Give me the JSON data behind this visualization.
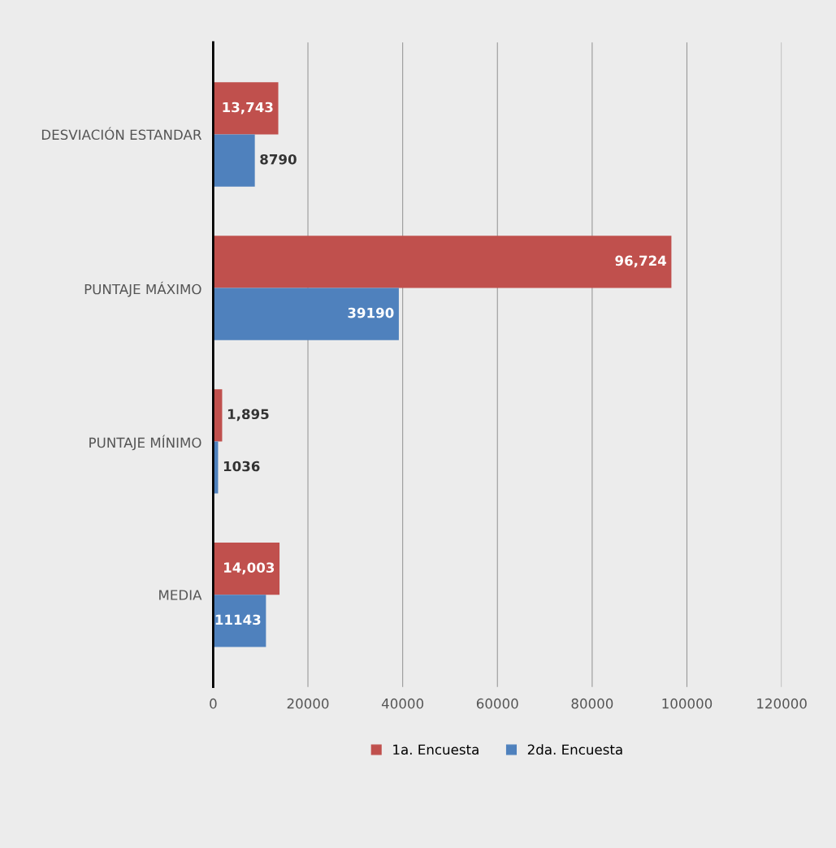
{
  "chart_data": {
    "type": "bar",
    "orientation": "horizontal",
    "categories": [
      "DESVIACIÓN ESTANDAR",
      "PUNTAJE MÁXIMO",
      "PUNTAJE MÍNIMO",
      "MEDIA"
    ],
    "series": [
      {
        "name": "1a. Encuesta",
        "color": "#c0504d",
        "values": [
          13743,
          96724,
          1895,
          14003
        ],
        "value_labels": [
          "13,743",
          "96,724",
          "1,895",
          "14,003"
        ]
      },
      {
        "name": "2da. Encuesta",
        "color": "#4f81bd",
        "values": [
          8790,
          39190,
          1036,
          11143
        ],
        "value_labels": [
          "8790",
          "39190",
          "1036",
          "11143"
        ]
      }
    ],
    "xlim": [
      0,
      120000
    ],
    "xticks": [
      0,
      20000,
      40000,
      60000,
      80000,
      100000,
      120000
    ],
    "grid": "x",
    "legend": "bottom"
  }
}
